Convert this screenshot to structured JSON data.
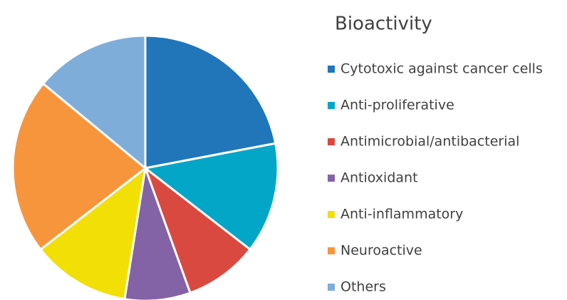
{
  "chart_data": {
    "type": "pie",
    "title": "Bioactivity",
    "categories": [
      "Cytotoxic against cancer cells",
      "Anti-proliferative",
      "Antimicrobial/antibacterial",
      "Antioxidant",
      "Anti-inflammatory",
      "Neuroactive",
      "Others"
    ],
    "values": [
      22,
      13.5,
      9,
      8,
      12,
      21.5,
      14
    ],
    "colors": [
      "#2076b9",
      "#04a6c8",
      "#d9493f",
      "#8462a6",
      "#f2df05",
      "#f7953d",
      "#7eadd9"
    ],
    "legend": "right"
  }
}
